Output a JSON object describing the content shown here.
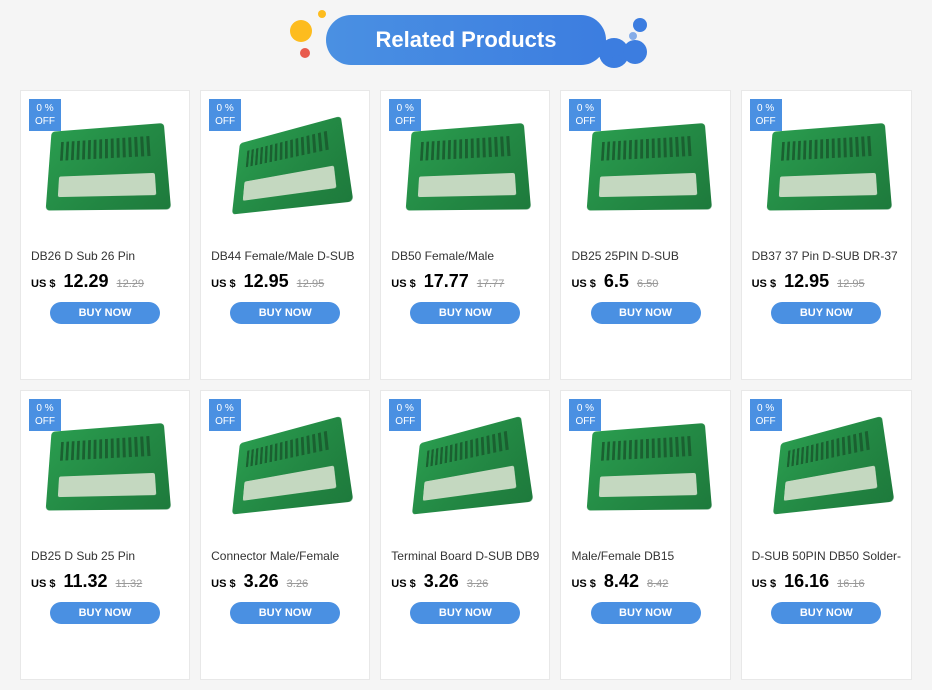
{
  "header": {
    "title": "Related Products"
  },
  "badge": {
    "percent": "0  %",
    "off": "OFF"
  },
  "buy_label": "BUY NOW",
  "currency": "US $",
  "products": [
    {
      "title": "DB26 D Sub 26 Pin",
      "price": "12.29",
      "old_price": "12.29"
    },
    {
      "title": "DB44 Female/Male D-SUB",
      "price": "12.95",
      "old_price": "12.95"
    },
    {
      "title": "DB50 Female/Male",
      "price": "17.77",
      "old_price": "17.77"
    },
    {
      "title": "DB25 25PIN D-SUB",
      "price": "6.5",
      "old_price": "6.50"
    },
    {
      "title": "DB37 37 Pin D-SUB DR-37",
      "price": "12.95",
      "old_price": "12.95"
    },
    {
      "title": "DB25 D Sub 25 Pin",
      "price": "11.32",
      "old_price": "11.32"
    },
    {
      "title": "Connector Male/Female",
      "price": "3.26",
      "old_price": "3.26"
    },
    {
      "title": "Terminal Board D-SUB DB9",
      "price": "3.26",
      "old_price": "3.26"
    },
    {
      "title": "Male/Female DB15",
      "price": "8.42",
      "old_price": "8.42"
    },
    {
      "title": "D-SUB 50PIN DB50 Solder-",
      "price": "16.16",
      "old_price": "16.16"
    }
  ],
  "colors": {
    "primary": "#4a90e2",
    "accent_yellow": "#fdbc1e",
    "accent_red": "#e85b4d",
    "pcb_green": "#2a9d4f",
    "old_price": "#999999"
  }
}
